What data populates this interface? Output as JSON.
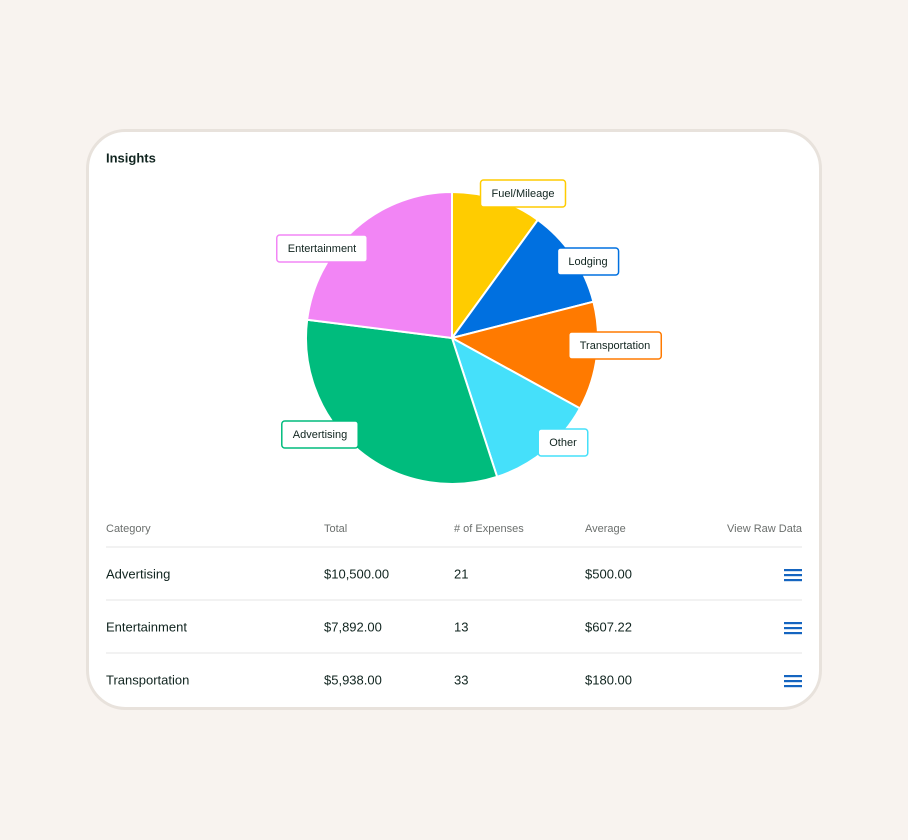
{
  "header": {
    "title": "Insights"
  },
  "chart_data": {
    "type": "pie",
    "categories": [
      "Fuel/Mileage",
      "Lodging",
      "Transportation",
      "Other",
      "Advertising",
      "Entertainment"
    ],
    "values": [
      10,
      11,
      12,
      12,
      32,
      23
    ],
    "colors": [
      "#ffcc00",
      "#0070e0",
      "#ff7a00",
      "#45e0fa",
      "#00bc7d",
      "#f285f5"
    ]
  },
  "table": {
    "columns": [
      "Category",
      "Total",
      "# of Expenses",
      "Average",
      "View Raw Data"
    ],
    "rows": [
      [
        "Advertising",
        "$10,500.00",
        21,
        "$500.00"
      ],
      [
        "Entertainment",
        "$7,892.00",
        13,
        "$607.22"
      ],
      [
        "Transportation",
        "$5,938.00",
        33,
        "$180.00"
      ]
    ]
  }
}
